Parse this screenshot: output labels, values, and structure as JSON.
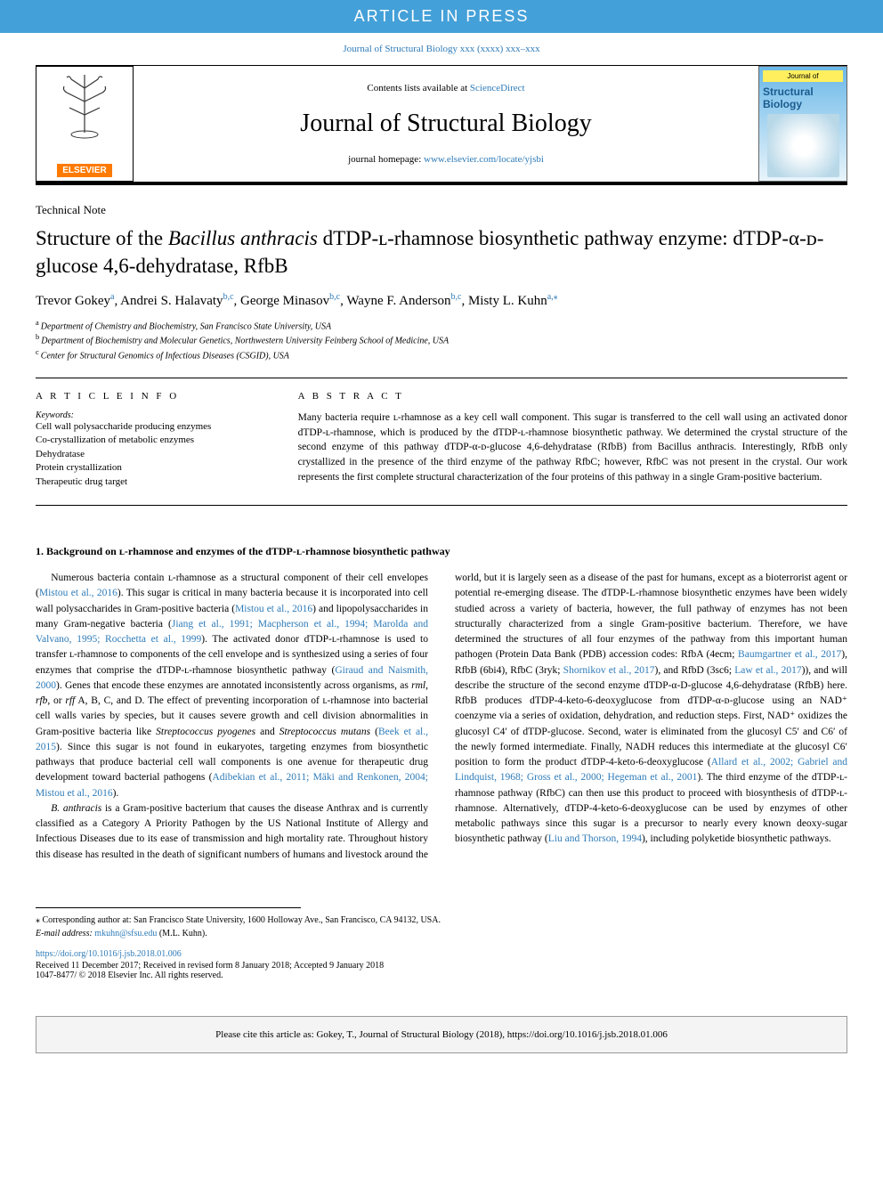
{
  "banner": {
    "text": "ARTICLE IN PRESS"
  },
  "journal_ref": "Journal of Structural Biology xxx (xxxx) xxx–xxx",
  "header": {
    "contents_prefix": "Contents lists available at ",
    "contents_link": "ScienceDirect",
    "journal_name": "Journal of Structural Biology",
    "homepage_prefix": "journal homepage: ",
    "homepage_link": "www.elsevier.com/locate/yjsbi",
    "elsevier": "ELSEVIER",
    "cover_top": "Journal of",
    "cover_title": "Structural Biology"
  },
  "article_type": "Technical Note",
  "title_parts": {
    "p1": "Structure of the ",
    "em1": "Bacillus anthracis",
    "p2": " dTDP-ʟ-rhamnose biosynthetic pathway enzyme: dTDP-α-ᴅ-glucose 4,6-dehydratase, RfbB"
  },
  "authors": [
    {
      "name": "Trevor Gokey",
      "sup": "a"
    },
    {
      "name": "Andrei S. Halavaty",
      "sup": "b,c"
    },
    {
      "name": "George Minasov",
      "sup": "b,c"
    },
    {
      "name": "Wayne F. Anderson",
      "sup": "b,c"
    },
    {
      "name": "Misty L. Kuhn",
      "sup": "a,⁎"
    }
  ],
  "affiliations": [
    {
      "sup": "a",
      "text": "Department of Chemistry and Biochemistry, San Francisco State University, USA"
    },
    {
      "sup": "b",
      "text": "Department of Biochemistry and Molecular Genetics, Northwestern University Feinberg School of Medicine, USA"
    },
    {
      "sup": "c",
      "text": "Center for Structural Genomics of Infectious Diseases (CSGID), USA"
    }
  ],
  "info_label": "A R T I C L E   I N F O",
  "abstract_label": "A B S T R A C T",
  "keywords_label": "Keywords:",
  "keywords": [
    "Cell wall polysaccharide producing enzymes",
    "Co-crystallization of metabolic enzymes",
    "Dehydratase",
    "Protein crystallization",
    "Therapeutic drug target"
  ],
  "abstract": "Many bacteria require ʟ-rhamnose as a key cell wall component. This sugar is transferred to the cell wall using an activated donor dTDP-ʟ-rhamnose, which is produced by the dTDP-ʟ-rhamnose biosynthetic pathway. We determined the crystal structure of the second enzyme of this pathway dTDP-α-ᴅ-glucose 4,6-dehydratase (RfbB) from Bacillus anthracis. Interestingly, RfbB only crystallized in the presence of the third enzyme of the pathway RfbC; however, RfbC was not present in the crystal. Our work represents the first complete structural characterization of the four proteins of this pathway in a single Gram-positive bacterium.",
  "body": {
    "heading": "1. Background on ʟ-rhamnose and enzymes of the dTDP-ʟ-rhamnose biosynthetic pathway",
    "para1_a": "Numerous bacteria contain ʟ-rhamnose as a structural component of their cell envelopes (",
    "cite1": "Mistou et al., 2016",
    "para1_b": "). This sugar is critical in many bacteria because it is incorporated into cell wall polysaccharides in Gram-positive bacteria (",
    "cite2": "Mistou et al., 2016",
    "para1_c": ") and lipopolysaccharides in many Gram-negative bacteria (",
    "cite3": "Jiang et al., 1991; Macpherson et al., 1994; Marolda and Valvano, 1995; Rocchetta et al., 1999",
    "para1_d": "). The activated donor dTDP-ʟ-rhamnose is used to transfer ʟ-rhamnose to components of the cell envelope and is synthesized using a series of four enzymes that comprise the dTDP-ʟ-rhamnose biosynthetic pathway (",
    "cite4": "Giraud and Naismith, 2000",
    "para1_e": "). Genes that encode these enzymes are annotated inconsistently across organisms, as ",
    "em1": "rml",
    "para1_f": ", ",
    "em2": "rfb",
    "para1_g": ", or ",
    "em3": "rff",
    "para1_h": " A, B, C, and D. The effect of preventing incorporation of ʟ-rhamnose into bacterial cell walls varies by species, but it causes severe growth and cell division abnormalities in Gram-positive bacteria like ",
    "em4": "Streptococcus pyogenes",
    "para1_i": " and ",
    "em5": "Streptococcus mutans",
    "para1_j": " (",
    "cite5": "Beek et al., 2015",
    "para1_k": "). Since this sugar is not found in eukaryotes, targeting enzymes from biosynthetic pathways that produce bacterial cell wall components is one avenue for therapeutic drug development toward bacterial pathogens (",
    "cite6": "Adibekian et al., 2011; Mäki and Renkonen, 2004; Mistou et al., 2016",
    "para1_l": ").",
    "para2_a": "",
    "em6": "B. anthracis",
    "para2_b": " is a Gram-positive bacterium that causes the disease Anthrax and is currently classified as a Category A Priority Pathogen by the US National Institute of Allergy and Infectious Diseases due to its ease of transmission and high mortality rate. Throughout history this disease has resulted in the death of significant numbers of humans and livestock around the world, but it is largely seen as a disease of the past for humans, except as a bioterrorist agent or potential re-emerging disease. The dTDP-L-rhamnose biosynthetic enzymes have been widely studied across a variety of bacteria, however, the full pathway of enzymes has not been structurally characterized from a single Gram-positive bacterium. Therefore, we have determined the structures of all four enzymes of the pathway from this important human pathogen (Protein Data Bank (PDB) accession codes: RfbA (4ecm; ",
    "cite7": "Baumgartner et al., 2017",
    "para2_c": "), RfbB (6bi4), RfbC (3ryk; ",
    "cite8": "Shornikov et al., 2017",
    "para2_d": "), and RfbD (3sc6; ",
    "cite9": "Law et al., 2017",
    "para2_e": ")), and will describe the structure of the second enzyme dTDP-α-D-glucose 4,6-dehydratase (RfbB) here. RfbB produces dTDP-4-keto-6-deoxyglucose from dTDP-α-ᴅ-glucose using an NAD⁺ coenzyme via a series of oxidation, dehydration, and reduction steps. First, NAD⁺ oxidizes the glucosyl C4′ of dTDP-glucose. Second, water is eliminated from the glucosyl C5′ and C6′ of the newly formed intermediate. Finally, NADH reduces this intermediate at the glucosyl C6′ position to form the product dTDP-4-keto-6-deoxyglucose (",
    "cite10": "Allard et al., 2002; Gabriel and Lindquist, 1968; Gross et al., 2000; Hegeman et al., 2001",
    "para2_f": "). The third enzyme of the dTDP-ʟ-rhamnose pathway (RfbC) can then use this product to proceed with biosynthesis of dTDP-ʟ-rhamnose. Alternatively, dTDP-4-keto-6-deoxyglucose can be used by enzymes of other metabolic pathways since this sugar is a precursor to nearly every known deoxy-sugar biosynthetic pathway (",
    "cite11": "Liu and Thorson, 1994",
    "para2_g": "), including polyketide biosynthetic pathways."
  },
  "footnote": {
    "star": "⁎ Corresponding author at: San Francisco State University, 1600 Holloway Ave., San Francisco, CA 94132, USA.",
    "email_label": "E-mail address: ",
    "email": "mkuhn@sfsu.edu",
    "email_suffix": " (M.L. Kuhn)."
  },
  "doi": "https://doi.org/10.1016/j.jsb.2018.01.006",
  "received": "Received 11 December 2017; Received in revised form 8 January 2018; Accepted 9 January 2018",
  "copyright": "1047-8477/ © 2018 Elsevier Inc. All rights reserved.",
  "cite_box": "Please cite this article as: Gokey, T., Journal of Structural Biology (2018), https://doi.org/10.1016/j.jsb.2018.01.006",
  "colors": {
    "banner_bg": "#44a0d8",
    "link": "#2e7bb8",
    "elsevier_orange": "#ff7a00",
    "cover_yellow": "#ffef5e"
  }
}
